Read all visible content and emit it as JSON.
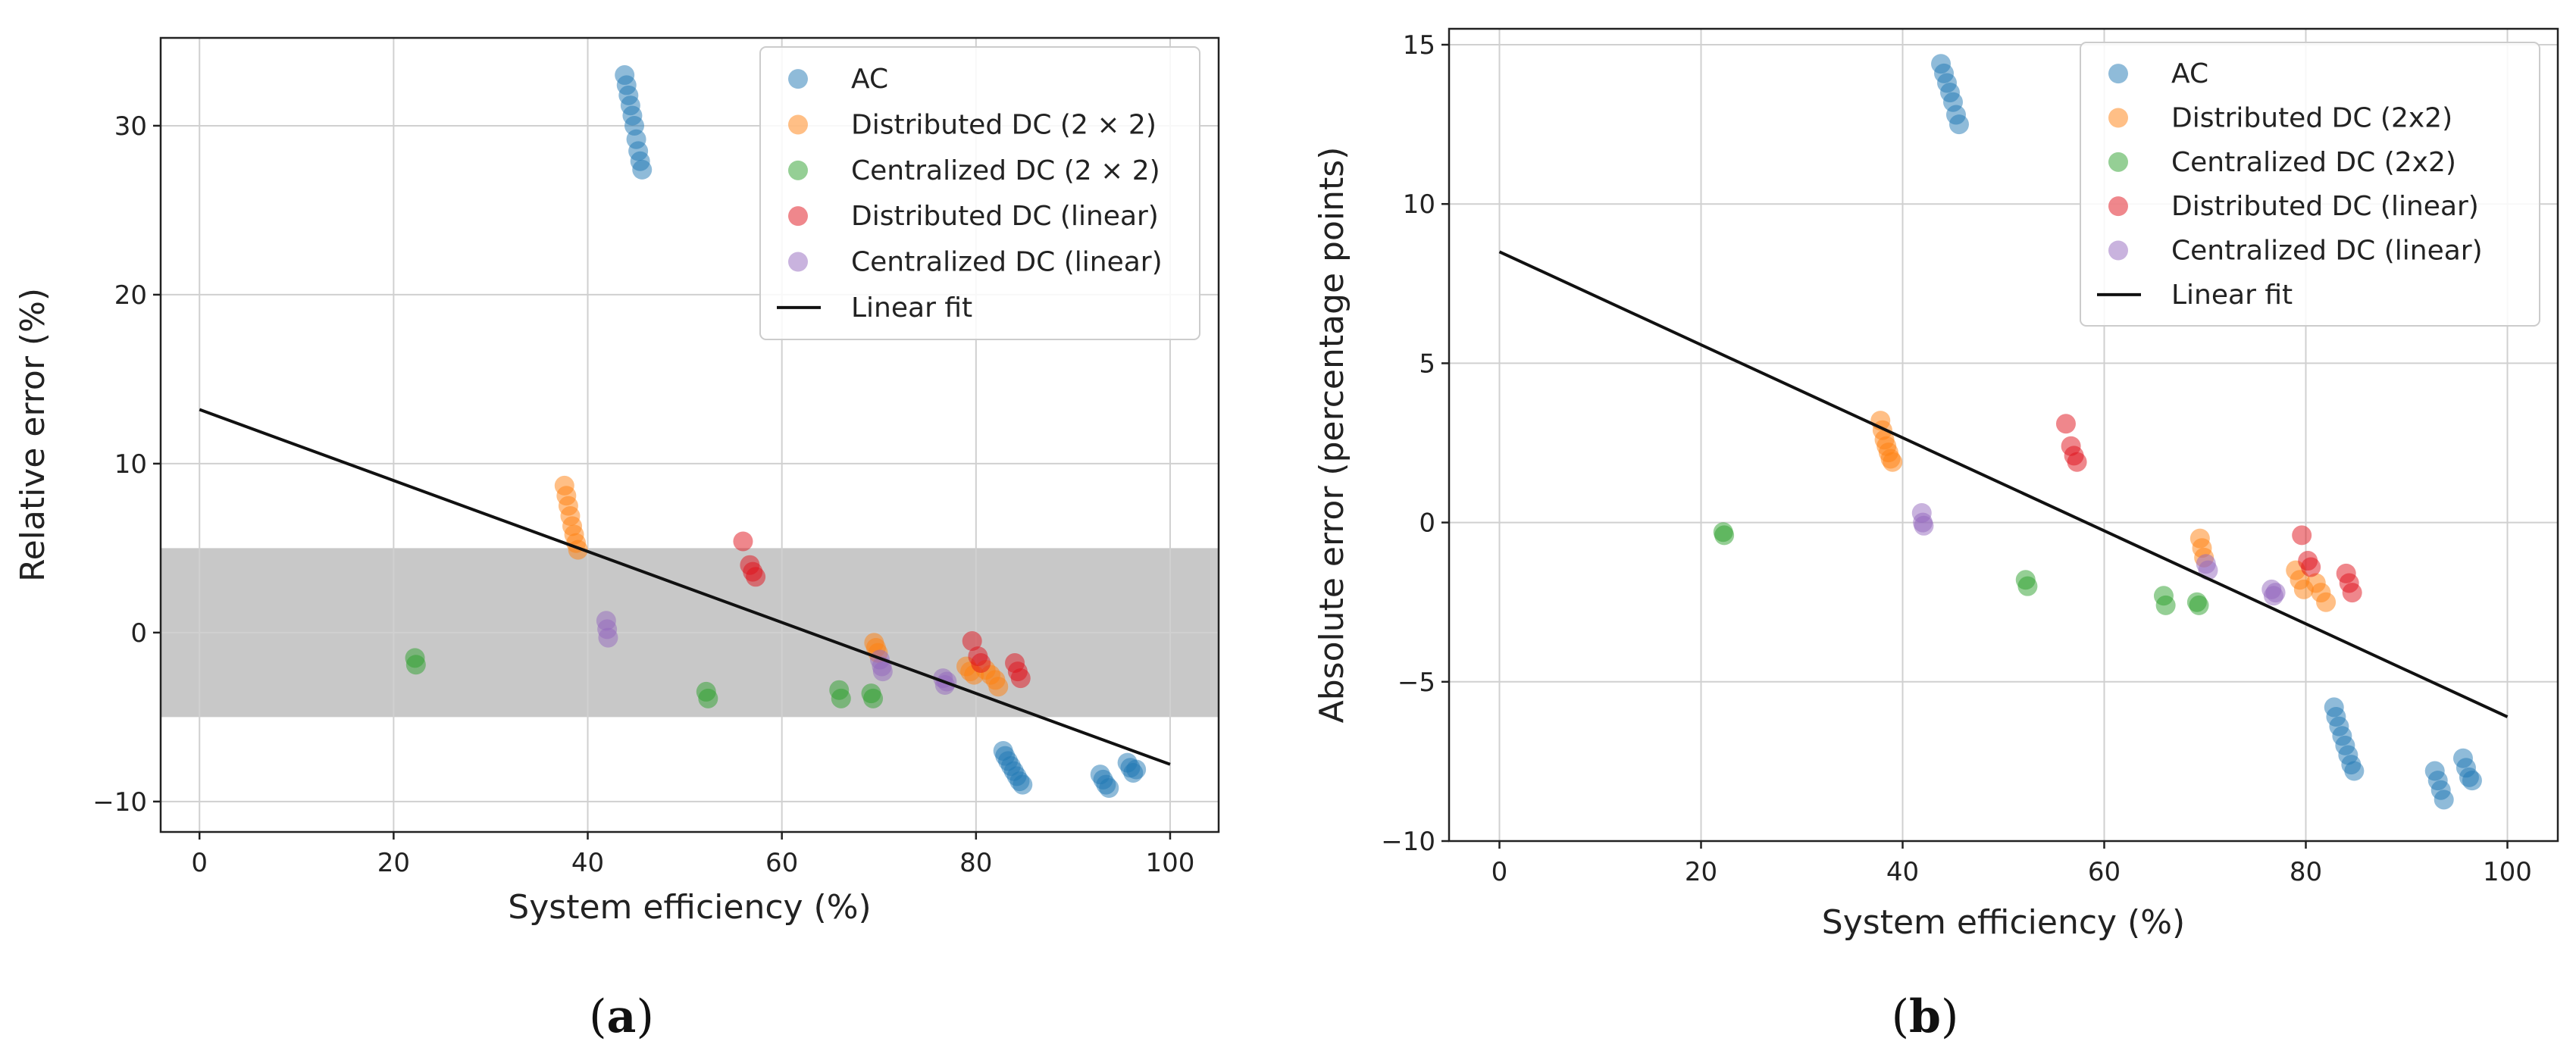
{
  "chart_data": [
    {
      "type": "scatter",
      "panel": "a",
      "caption_label": "a",
      "xlabel": "System efficiency (%)",
      "ylabel": "Relative error (%)",
      "xlim": [
        -4,
        105
      ],
      "ylim": [
        -11.8,
        35.2
      ],
      "xticks": [
        0,
        20,
        40,
        60,
        80,
        100
      ],
      "yticks": [
        -10,
        0,
        10,
        20,
        30
      ],
      "band": [
        -5,
        5
      ],
      "fit": {
        "name": "Linear fit",
        "x": [
          0,
          100
        ],
        "y": [
          13.2,
          -7.8
        ]
      },
      "legend_position": "top-right",
      "series": [
        {
          "name": "AC",
          "color": "#1f77b4",
          "points": [
            [
              43.8,
              33.0
            ],
            [
              44.0,
              32.4
            ],
            [
              44.2,
              31.8
            ],
            [
              44.4,
              31.2
            ],
            [
              44.6,
              30.6
            ],
            [
              44.8,
              30.0
            ],
            [
              45.0,
              29.2
            ],
            [
              45.2,
              28.5
            ],
            [
              45.4,
              27.9
            ],
            [
              45.6,
              27.4
            ],
            [
              82.8,
              -7.0
            ],
            [
              83.0,
              -7.3
            ],
            [
              83.3,
              -7.6
            ],
            [
              83.6,
              -7.9
            ],
            [
              83.9,
              -8.2
            ],
            [
              84.2,
              -8.5
            ],
            [
              84.5,
              -8.8
            ],
            [
              84.8,
              -9.0
            ],
            [
              92.8,
              -8.4
            ],
            [
              93.1,
              -8.7
            ],
            [
              93.4,
              -9.0
            ],
            [
              93.7,
              -9.2
            ],
            [
              95.6,
              -7.7
            ],
            [
              95.9,
              -8.0
            ],
            [
              96.2,
              -8.3
            ],
            [
              96.5,
              -8.1
            ]
          ]
        },
        {
          "name": "Distributed DC (2 × 2)",
          "color": "#ff7f0e",
          "points": [
            [
              37.6,
              8.7
            ],
            [
              37.8,
              8.1
            ],
            [
              38.0,
              7.5
            ],
            [
              38.2,
              6.9
            ],
            [
              38.4,
              6.3
            ],
            [
              38.6,
              5.8
            ],
            [
              38.8,
              5.3
            ],
            [
              39.0,
              4.9
            ],
            [
              69.5,
              -0.6
            ],
            [
              69.7,
              -0.9
            ],
            [
              69.9,
              -1.2
            ],
            [
              79.0,
              -2.0
            ],
            [
              79.4,
              -2.3
            ],
            [
              79.8,
              -2.5
            ],
            [
              81.0,
              -2.2
            ],
            [
              81.5,
              -2.5
            ],
            [
              82.0,
              -2.8
            ],
            [
              82.3,
              -3.2
            ]
          ]
        },
        {
          "name": "Centralized DC (2 × 2)",
          "color": "#2ca02c",
          "points": [
            [
              22.2,
              -1.5
            ],
            [
              22.3,
              -1.9
            ],
            [
              52.2,
              -3.5
            ],
            [
              52.4,
              -3.9
            ],
            [
              65.9,
              -3.4
            ],
            [
              66.1,
              -3.9
            ],
            [
              69.2,
              -3.6
            ],
            [
              69.4,
              -3.9
            ]
          ]
        },
        {
          "name": "Distributed DC (linear)",
          "color": "#e0101a",
          "points": [
            [
              56.0,
              5.4
            ],
            [
              56.7,
              4.0
            ],
            [
              57.0,
              3.6
            ],
            [
              57.3,
              3.3
            ],
            [
              79.6,
              -0.5
            ],
            [
              80.2,
              -1.4
            ],
            [
              80.5,
              -1.8
            ],
            [
              84.0,
              -1.8
            ],
            [
              84.3,
              -2.3
            ],
            [
              84.6,
              -2.7
            ]
          ]
        },
        {
          "name": "Centralized DC (linear)",
          "color": "#9467bd",
          "points": [
            [
              41.9,
              0.7
            ],
            [
              42.0,
              0.2
            ],
            [
              42.1,
              -0.3
            ],
            [
              70.1,
              -1.6
            ],
            [
              70.3,
              -2.0
            ],
            [
              70.4,
              -2.3
            ],
            [
              76.6,
              -2.7
            ],
            [
              76.8,
              -3.1
            ],
            [
              77.0,
              -2.9
            ]
          ]
        }
      ]
    },
    {
      "type": "scatter",
      "panel": "b",
      "caption_label": "b",
      "xlabel": "System efficiency (%)",
      "ylabel": "Absolute error (percentage points)",
      "xlim": [
        -5,
        105
      ],
      "ylim": [
        -10,
        15.5
      ],
      "xticks": [
        0,
        20,
        40,
        60,
        80,
        100
      ],
      "yticks": [
        -10,
        -5,
        0,
        5,
        10,
        15
      ],
      "band": null,
      "fit": {
        "name": "Linear fit",
        "x": [
          0,
          100
        ],
        "y": [
          8.5,
          -6.1
        ]
      },
      "legend_position": "top-right",
      "series": [
        {
          "name": "AC",
          "color": "#1f77b4",
          "points": [
            [
              43.8,
              14.4
            ],
            [
              44.1,
              14.1
            ],
            [
              44.4,
              13.8
            ],
            [
              44.7,
              13.5
            ],
            [
              45.0,
              13.2
            ],
            [
              45.3,
              12.8
            ],
            [
              45.6,
              12.5
            ],
            [
              82.8,
              -5.8
            ],
            [
              83.0,
              -6.1
            ],
            [
              83.3,
              -6.4
            ],
            [
              83.6,
              -6.7
            ],
            [
              83.9,
              -7.0
            ],
            [
              84.2,
              -7.3
            ],
            [
              84.5,
              -7.6
            ],
            [
              84.8,
              -7.8
            ],
            [
              92.8,
              -7.8
            ],
            [
              93.1,
              -8.1
            ],
            [
              93.4,
              -8.4
            ],
            [
              93.7,
              -8.7
            ],
            [
              95.6,
              -7.4
            ],
            [
              95.9,
              -7.7
            ],
            [
              96.2,
              -8.0
            ],
            [
              96.5,
              -8.1
            ]
          ]
        },
        {
          "name": "Distributed DC (2x2)",
          "color": "#ff7f0e",
          "points": [
            [
              37.8,
              3.2
            ],
            [
              38.0,
              2.9
            ],
            [
              38.2,
              2.6
            ],
            [
              38.4,
              2.4
            ],
            [
              38.6,
              2.2
            ],
            [
              38.8,
              2.0
            ],
            [
              39.0,
              1.9
            ],
            [
              69.5,
              -0.5
            ],
            [
              69.7,
              -0.8
            ],
            [
              69.9,
              -1.1
            ],
            [
              79.0,
              -1.5
            ],
            [
              79.4,
              -1.8
            ],
            [
              79.8,
              -2.1
            ],
            [
              81.0,
              -1.9
            ],
            [
              81.5,
              -2.2
            ],
            [
              82.0,
              -2.5
            ]
          ]
        },
        {
          "name": "Centralized DC (2x2)",
          "color": "#2ca02c",
          "points": [
            [
              22.2,
              -0.3
            ],
            [
              22.3,
              -0.4
            ],
            [
              52.2,
              -1.8
            ],
            [
              52.4,
              -2.0
            ],
            [
              65.9,
              -2.3
            ],
            [
              66.1,
              -2.6
            ],
            [
              69.2,
              -2.5
            ],
            [
              69.4,
              -2.6
            ]
          ]
        },
        {
          "name": "Distributed DC (linear)",
          "color": "#e0101a",
          "points": [
            [
              56.2,
              3.1
            ],
            [
              56.7,
              2.4
            ],
            [
              57.0,
              2.1
            ],
            [
              57.3,
              1.9
            ],
            [
              79.6,
              -0.4
            ],
            [
              80.2,
              -1.2
            ],
            [
              80.5,
              -1.4
            ],
            [
              84.0,
              -1.6
            ],
            [
              84.3,
              -1.9
            ],
            [
              84.6,
              -2.2
            ]
          ]
        },
        {
          "name": "Centralized DC (linear)",
          "color": "#9467bd",
          "points": [
            [
              41.9,
              0.3
            ],
            [
              42.0,
              0.0
            ],
            [
              42.1,
              -0.1
            ],
            [
              70.1,
              -1.3
            ],
            [
              70.3,
              -1.5
            ],
            [
              76.6,
              -2.1
            ],
            [
              76.8,
              -2.3
            ],
            [
              77.0,
              -2.2
            ]
          ]
        }
      ]
    }
  ]
}
